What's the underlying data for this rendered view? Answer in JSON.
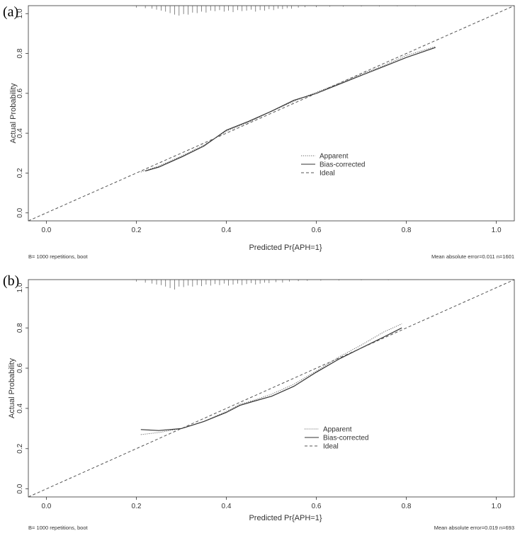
{
  "chart_data": [
    {
      "panel_label": "(a)",
      "type": "line",
      "xlabel": "Predicted Pr{APH=1}",
      "ylabel": "Actual Probability",
      "xlim": [
        -0.04,
        1.04
      ],
      "ylim": [
        -0.04,
        1.04
      ],
      "x_ticks": [
        "0.0",
        "0.2",
        "0.4",
        "0.6",
        "0.8",
        "1.0"
      ],
      "y_ticks": [
        "0.0",
        "0.2",
        "0.4",
        "0.6",
        "0.8",
        "1.0"
      ],
      "footer_left": "B= 1000 repetitions, boot",
      "footer_right": "Mean absolute error=0.011 n=1601",
      "legend": [
        "Apparent",
        "Bias-corrected",
        "Ideal"
      ],
      "series": [
        {
          "name": "Apparent",
          "style": "dotted",
          "x": [
            0.21,
            0.25,
            0.3,
            0.35,
            0.4,
            0.45,
            0.5,
            0.55,
            0.6,
            0.65,
            0.7,
            0.75,
            0.8,
            0.865
          ],
          "y": [
            0.205,
            0.235,
            0.285,
            0.34,
            0.41,
            0.455,
            0.51,
            0.56,
            0.605,
            0.65,
            0.695,
            0.74,
            0.79,
            0.835
          ]
        },
        {
          "name": "Bias-corrected",
          "style": "solid",
          "x": [
            0.22,
            0.25,
            0.3,
            0.35,
            0.4,
            0.45,
            0.5,
            0.55,
            0.6,
            0.65,
            0.7,
            0.75,
            0.8,
            0.865
          ],
          "y": [
            0.21,
            0.23,
            0.28,
            0.335,
            0.415,
            0.46,
            0.51,
            0.565,
            0.6,
            0.645,
            0.69,
            0.735,
            0.78,
            0.83
          ]
        },
        {
          "name": "Ideal",
          "style": "dashed",
          "x": [
            -0.04,
            1.04
          ],
          "y": [
            -0.04,
            1.04
          ]
        }
      ],
      "rug": [
        {
          "x": 0.2,
          "h": 0.2
        },
        {
          "x": 0.22,
          "h": 0.25
        },
        {
          "x": 0.235,
          "h": 0.3
        },
        {
          "x": 0.245,
          "h": 0.4
        },
        {
          "x": 0.255,
          "h": 0.5
        },
        {
          "x": 0.265,
          "h": 0.6
        },
        {
          "x": 0.275,
          "h": 0.75
        },
        {
          "x": 0.285,
          "h": 0.9
        },
        {
          "x": 0.295,
          "h": 1.0
        },
        {
          "x": 0.305,
          "h": 0.85
        },
        {
          "x": 0.315,
          "h": 0.9
        },
        {
          "x": 0.325,
          "h": 0.7
        },
        {
          "x": 0.335,
          "h": 0.75
        },
        {
          "x": 0.345,
          "h": 0.6
        },
        {
          "x": 0.355,
          "h": 0.7
        },
        {
          "x": 0.365,
          "h": 0.5
        },
        {
          "x": 0.375,
          "h": 0.55
        },
        {
          "x": 0.385,
          "h": 0.45
        },
        {
          "x": 0.395,
          "h": 0.6
        },
        {
          "x": 0.405,
          "h": 0.5
        },
        {
          "x": 0.415,
          "h": 0.65
        },
        {
          "x": 0.425,
          "h": 0.45
        },
        {
          "x": 0.435,
          "h": 0.55
        },
        {
          "x": 0.445,
          "h": 0.5
        },
        {
          "x": 0.455,
          "h": 0.4
        },
        {
          "x": 0.465,
          "h": 0.6
        },
        {
          "x": 0.475,
          "h": 0.45
        },
        {
          "x": 0.485,
          "h": 0.5
        },
        {
          "x": 0.495,
          "h": 0.35
        },
        {
          "x": 0.505,
          "h": 0.45
        },
        {
          "x": 0.515,
          "h": 0.3
        },
        {
          "x": 0.525,
          "h": 0.35
        },
        {
          "x": 0.535,
          "h": 0.25
        },
        {
          "x": 0.545,
          "h": 0.3
        },
        {
          "x": 0.56,
          "h": 0.2
        },
        {
          "x": 0.575,
          "h": 0.15
        },
        {
          "x": 0.6,
          "h": 0.15
        },
        {
          "x": 0.63,
          "h": 0.1
        },
        {
          "x": 0.66,
          "h": 0.1
        },
        {
          "x": 0.7,
          "h": 0.08
        },
        {
          "x": 0.74,
          "h": 0.08
        },
        {
          "x": 0.78,
          "h": 0.06
        },
        {
          "x": 0.82,
          "h": 0.06
        }
      ]
    },
    {
      "panel_label": "(b)",
      "type": "line",
      "xlabel": "Predicted Pr{APH=1}",
      "ylabel": "Actual Probability",
      "xlim": [
        -0.04,
        1.04
      ],
      "ylim": [
        -0.04,
        1.04
      ],
      "x_ticks": [
        "0.0",
        "0.2",
        "0.4",
        "0.6",
        "0.8",
        "1.0"
      ],
      "y_ticks": [
        "0.0",
        "0.2",
        "0.4",
        "0.6",
        "0.8",
        "1.0"
      ],
      "footer_left": "B= 1000 repetitions, boot",
      "footer_right": "Mean absolute error=0.019 n=693",
      "legend": [
        "Apparent",
        "Bias-corrected",
        "Ideal"
      ],
      "series": [
        {
          "name": "Apparent",
          "style": "dotted",
          "x": [
            0.21,
            0.25,
            0.3,
            0.35,
            0.4,
            0.43,
            0.46,
            0.5,
            0.55,
            0.6,
            0.65,
            0.7,
            0.75,
            0.79
          ],
          "y": [
            0.27,
            0.28,
            0.3,
            0.335,
            0.385,
            0.42,
            0.44,
            0.47,
            0.52,
            0.585,
            0.655,
            0.715,
            0.78,
            0.82
          ]
        },
        {
          "name": "Bias-corrected",
          "style": "solid",
          "x": [
            0.21,
            0.25,
            0.3,
            0.35,
            0.4,
            0.43,
            0.46,
            0.5,
            0.55,
            0.6,
            0.65,
            0.7,
            0.75,
            0.79
          ],
          "y": [
            0.295,
            0.29,
            0.3,
            0.335,
            0.38,
            0.415,
            0.435,
            0.46,
            0.51,
            0.58,
            0.645,
            0.7,
            0.755,
            0.8
          ]
        },
        {
          "name": "Ideal",
          "style": "dashed",
          "x": [
            -0.04,
            1.04
          ],
          "y": [
            -0.04,
            1.04
          ]
        }
      ],
      "rug": [
        {
          "x": 0.2,
          "h": 0.2
        },
        {
          "x": 0.22,
          "h": 0.3
        },
        {
          "x": 0.235,
          "h": 0.4
        },
        {
          "x": 0.245,
          "h": 0.5
        },
        {
          "x": 0.255,
          "h": 0.55
        },
        {
          "x": 0.265,
          "h": 0.7
        },
        {
          "x": 0.275,
          "h": 0.85
        },
        {
          "x": 0.285,
          "h": 1.0
        },
        {
          "x": 0.295,
          "h": 0.7
        },
        {
          "x": 0.305,
          "h": 0.75
        },
        {
          "x": 0.315,
          "h": 0.6
        },
        {
          "x": 0.325,
          "h": 0.7
        },
        {
          "x": 0.335,
          "h": 0.55
        },
        {
          "x": 0.345,
          "h": 0.65
        },
        {
          "x": 0.355,
          "h": 0.5
        },
        {
          "x": 0.365,
          "h": 0.6
        },
        {
          "x": 0.375,
          "h": 0.45
        },
        {
          "x": 0.385,
          "h": 0.55
        },
        {
          "x": 0.395,
          "h": 0.4
        },
        {
          "x": 0.405,
          "h": 0.6
        },
        {
          "x": 0.415,
          "h": 0.5
        },
        {
          "x": 0.425,
          "h": 0.4
        },
        {
          "x": 0.435,
          "h": 0.55
        },
        {
          "x": 0.445,
          "h": 0.45
        },
        {
          "x": 0.455,
          "h": 0.35
        },
        {
          "x": 0.465,
          "h": 0.5
        },
        {
          "x": 0.475,
          "h": 0.4
        },
        {
          "x": 0.485,
          "h": 0.3
        },
        {
          "x": 0.495,
          "h": 0.35
        },
        {
          "x": 0.51,
          "h": 0.25
        },
        {
          "x": 0.525,
          "h": 0.3
        },
        {
          "x": 0.54,
          "h": 0.2
        },
        {
          "x": 0.56,
          "h": 0.15
        },
        {
          "x": 0.58,
          "h": 0.12
        },
        {
          "x": 0.61,
          "h": 0.1
        },
        {
          "x": 0.65,
          "h": 0.08
        },
        {
          "x": 0.7,
          "h": 0.06
        },
        {
          "x": 0.76,
          "h": 0.05
        }
      ]
    }
  ]
}
